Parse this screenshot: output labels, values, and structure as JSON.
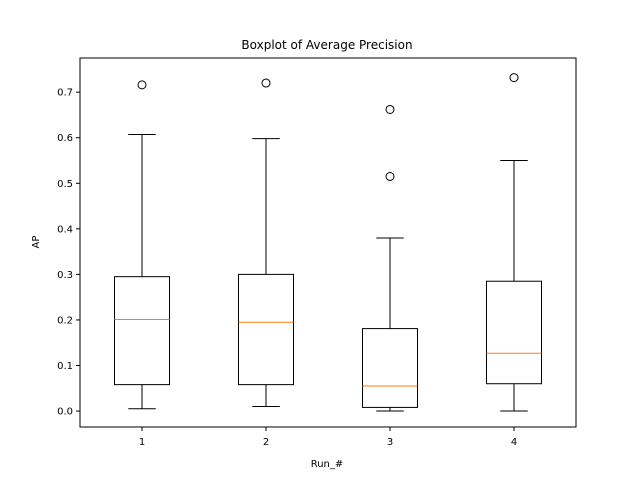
{
  "chart_data": {
    "type": "boxplot",
    "title": "Boxplot of Average Precision",
    "xlabel": "Run_#",
    "ylabel": "AP",
    "categories": [
      "1",
      "2",
      "3",
      "4"
    ],
    "ylim": [
      -0.035,
      0.775
    ],
    "yticks": [
      0.0,
      0.1,
      0.2,
      0.3,
      0.4,
      0.5,
      0.6,
      0.7
    ],
    "ytick_labels": [
      "0.0",
      "0.1",
      "0.2",
      "0.3",
      "0.4",
      "0.5",
      "0.6",
      "0.7"
    ],
    "grid": false,
    "colors": {
      "box": "#000000",
      "median": "#ff7f0e",
      "flier": "#000000"
    },
    "boxes": [
      {
        "label": "1",
        "whisker_low": 0.005,
        "q1": 0.058,
        "median": 0.201,
        "q3": 0.295,
        "whisker_high": 0.607,
        "fliers": [
          0.716
        ]
      },
      {
        "label": "2",
        "whisker_low": 0.01,
        "q1": 0.058,
        "median": 0.195,
        "q3": 0.3,
        "whisker_high": 0.598,
        "fliers": [
          0.72
        ]
      },
      {
        "label": "3",
        "whisker_low": 0.0,
        "q1": 0.008,
        "median": 0.055,
        "q3": 0.181,
        "whisker_high": 0.38,
        "fliers": [
          0.515,
          0.662
        ]
      },
      {
        "label": "4",
        "whisker_low": 0.0,
        "q1": 0.06,
        "median": 0.127,
        "q3": 0.285,
        "whisker_high": 0.55,
        "fliers": [
          0.732
        ]
      }
    ]
  }
}
